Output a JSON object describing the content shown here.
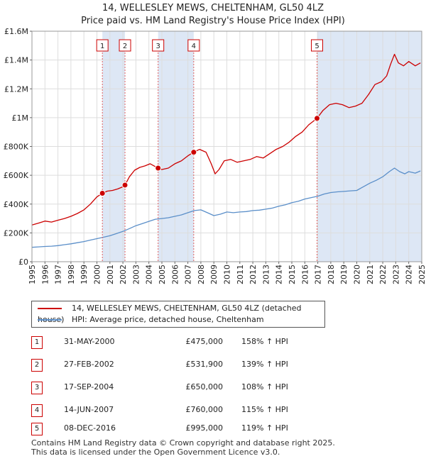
{
  "chart_data": {
    "type": "line",
    "title": "14, WELLESLEY MEWS, CHELTENHAM, GL50 4LZ",
    "subtitle": "Price paid vs. HM Land Registry's House Price Index (HPI)",
    "xlim": [
      1995,
      2025
    ],
    "ylim": [
      0,
      1600000
    ],
    "x_ticks": [
      "1995",
      "1996",
      "1997",
      "1998",
      "1999",
      "2000",
      "2001",
      "2002",
      "2003",
      "2004",
      "2005",
      "2006",
      "2007",
      "2008",
      "2009",
      "2010",
      "2011",
      "2012",
      "2013",
      "2014",
      "2015",
      "2016",
      "2017",
      "2018",
      "2019",
      "2020",
      "2021",
      "2022",
      "2023",
      "2024",
      "2025"
    ],
    "y_ticks": [
      {
        "value": 0,
        "label": "£0"
      },
      {
        "value": 200000,
        "label": "£200K"
      },
      {
        "value": 400000,
        "label": "£400K"
      },
      {
        "value": 600000,
        "label": "£600K"
      },
      {
        "value": 800000,
        "label": "£800K"
      },
      {
        "value": 1000000,
        "label": "£1M"
      },
      {
        "value": 1200000,
        "label": "£1.2M"
      },
      {
        "value": 1400000,
        "label": "£1.4M"
      },
      {
        "value": 1600000,
        "label": "£1.6M"
      }
    ],
    "colors": {
      "property": "#cc0000",
      "hpi": "#5b8fc9",
      "shade": "#dde7f5",
      "grid": "#dddddd"
    },
    "series": [
      {
        "name": "14, WELLESLEY MEWS, CHELTENHAM, GL50 4LZ (detached house)",
        "x": [
          1995.0,
          1995.5,
          1996.0,
          1996.5,
          1997.0,
          1997.5,
          1998.0,
          1998.5,
          1999.0,
          1999.5,
          2000.0,
          2000.42,
          2000.8,
          2001.2,
          2001.6,
          2002.0,
          2002.16,
          2002.5,
          2002.9,
          2003.3,
          2003.7,
          2004.1,
          2004.5,
          2004.71,
          2005.0,
          2005.5,
          2006.0,
          2006.5,
          2007.0,
          2007.45,
          2007.9,
          2008.4,
          2008.8,
          2009.1,
          2009.4,
          2009.8,
          2010.3,
          2010.8,
          2011.3,
          2011.8,
          2012.3,
          2012.8,
          2013.3,
          2013.8,
          2014.3,
          2014.8,
          2015.3,
          2015.8,
          2016.3,
          2016.94,
          2017.4,
          2017.9,
          2018.4,
          2018.9,
          2019.4,
          2019.9,
          2020.4,
          2020.9,
          2021.4,
          2021.9,
          2022.3,
          2022.6,
          2022.9,
          2023.2,
          2023.6,
          2024.0,
          2024.5,
          2024.9
        ],
        "values": [
          255000,
          268000,
          282000,
          275000,
          288000,
          300000,
          315000,
          335000,
          360000,
          400000,
          450000,
          475000,
          490000,
          495000,
          505000,
          520000,
          531900,
          590000,
          635000,
          655000,
          665000,
          680000,
          660000,
          650000,
          640000,
          650000,
          680000,
          700000,
          735000,
          760000,
          780000,
          760000,
          680000,
          610000,
          640000,
          700000,
          710000,
          690000,
          700000,
          710000,
          730000,
          720000,
          750000,
          780000,
          800000,
          830000,
          870000,
          900000,
          950000,
          995000,
          1050000,
          1090000,
          1100000,
          1090000,
          1070000,
          1080000,
          1100000,
          1160000,
          1230000,
          1250000,
          1290000,
          1370000,
          1440000,
          1380000,
          1360000,
          1390000,
          1360000,
          1380000
        ]
      },
      {
        "name": "HPI: Average price, detached house, Cheltenham",
        "x": [
          1995.0,
          1995.5,
          1996.0,
          1996.5,
          1997.0,
          1997.5,
          1998.0,
          1998.5,
          1999.0,
          1999.5,
          2000.0,
          2000.5,
          2001.0,
          2001.5,
          2002.0,
          2002.5,
          2003.0,
          2003.5,
          2004.0,
          2004.5,
          2005.0,
          2005.5,
          2006.0,
          2006.5,
          2007.0,
          2007.5,
          2008.0,
          2008.5,
          2009.0,
          2009.5,
          2010.0,
          2010.5,
          2011.0,
          2011.5,
          2012.0,
          2012.5,
          2013.0,
          2013.5,
          2014.0,
          2014.5,
          2015.0,
          2015.5,
          2016.0,
          2016.5,
          2017.0,
          2017.5,
          2018.0,
          2018.5,
          2019.0,
          2019.5,
          2020.0,
          2020.5,
          2021.0,
          2021.5,
          2022.0,
          2022.5,
          2022.9,
          2023.3,
          2023.7,
          2024.0,
          2024.5,
          2024.9
        ],
        "values": [
          100000,
          103000,
          106000,
          108000,
          112000,
          118000,
          124000,
          132000,
          140000,
          150000,
          160000,
          170000,
          180000,
          195000,
          210000,
          230000,
          250000,
          265000,
          280000,
          295000,
          300000,
          305000,
          315000,
          325000,
          340000,
          355000,
          360000,
          340000,
          320000,
          330000,
          345000,
          340000,
          345000,
          348000,
          355000,
          358000,
          365000,
          372000,
          385000,
          395000,
          410000,
          420000,
          435000,
          445000,
          455000,
          470000,
          480000,
          485000,
          488000,
          492000,
          495000,
          520000,
          545000,
          565000,
          590000,
          625000,
          650000,
          625000,
          610000,
          625000,
          615000,
          630000
        ]
      }
    ],
    "sales": [
      {
        "num": "1",
        "x": 2000.42,
        "value": 475000
      },
      {
        "num": "2",
        "x": 2002.16,
        "value": 531900
      },
      {
        "num": "3",
        "x": 2004.71,
        "value": 650000
      },
      {
        "num": "4",
        "x": 2007.45,
        "value": 760000
      },
      {
        "num": "5",
        "x": 2016.94,
        "value": 995000
      }
    ]
  },
  "legend": {
    "property_label": "14, WELLESLEY MEWS, CHELTENHAM, GL50 4LZ (detached house)",
    "hpi_label": "HPI: Average price, detached house, Cheltenham"
  },
  "sales_table": [
    {
      "num": "1",
      "date": "31-MAY-2000",
      "price": "£475,000",
      "hpi": "158% ↑ HPI"
    },
    {
      "num": "2",
      "date": "27-FEB-2002",
      "price": "£531,900",
      "hpi": "139% ↑ HPI"
    },
    {
      "num": "3",
      "date": "17-SEP-2004",
      "price": "£650,000",
      "hpi": "108% ↑ HPI"
    },
    {
      "num": "4",
      "date": "14-JUN-2007",
      "price": "£760,000",
      "hpi": "115% ↑ HPI"
    },
    {
      "num": "5",
      "date": "08-DEC-2016",
      "price": "£995,000",
      "hpi": "119% ↑ HPI"
    }
  ],
  "footer": {
    "line1": "Contains HM Land Registry data © Crown copyright and database right 2025.",
    "line2": "This data is licensed under the Open Government Licence v3.0."
  }
}
